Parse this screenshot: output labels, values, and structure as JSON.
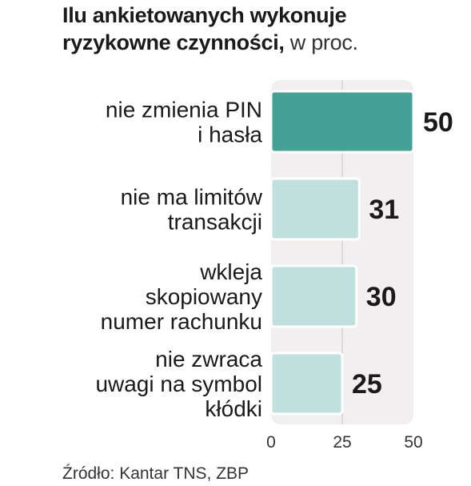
{
  "title": {
    "line1": "Ilu ankietowanych wykonuje",
    "line2": "ryzykowne czynności",
    "line2_sep": ",",
    "unit": " w proc."
  },
  "source": "Źródło: Kantar TNS, ZBP",
  "colors": {
    "highlight_bar": "#43a295",
    "normal_bar": "#bfe0dc",
    "bar_border": "#ffffff",
    "panel_bg": "#f1eff0",
    "gridline": "#d4d2d3",
    "text": "#1a1a1a"
  },
  "chart_data": {
    "type": "bar",
    "orientation": "horizontal",
    "categories": [
      [
        "nie zmienia PIN",
        "i hasła"
      ],
      [
        "nie ma limitów",
        "transakcji"
      ],
      [
        "wkleja",
        "skopiowany",
        "numer rachunku"
      ],
      [
        "nie zwraca",
        "uwagi na symbol",
        "kłódki"
      ]
    ],
    "values": [
      50,
      31,
      30,
      25
    ],
    "value_labels": [
      "50",
      "31",
      "30",
      "25"
    ],
    "highlight_index": 0,
    "xlim": [
      0,
      50
    ],
    "xticks": [
      0,
      25,
      50
    ],
    "xtick_labels": [
      "0",
      "25",
      "50"
    ],
    "grid": true
  }
}
